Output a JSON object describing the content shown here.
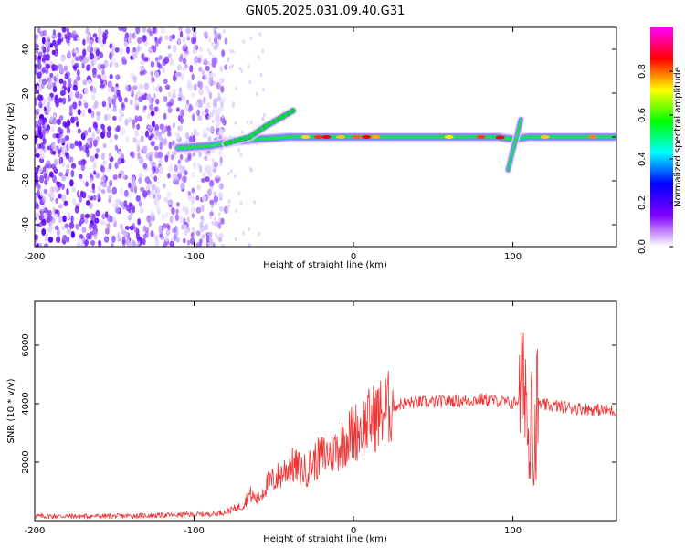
{
  "title": "GN05.2025.031.09.40.G31",
  "chart_data": [
    {
      "type": "heatmap",
      "xlabel": "Height of straight line (km)",
      "ylabel": "Frequency (Hz)",
      "xlim": [
        -200,
        165
      ],
      "ylim": [
        -50,
        50
      ],
      "xticks": [
        -200,
        -100,
        0,
        100
      ],
      "yticks": [
        -40,
        -20,
        0,
        20,
        40
      ],
      "colorbar": {
        "label": "Normalized spectral amplitude",
        "range": [
          0,
          1
        ],
        "ticks": [
          "0.0",
          "0.2",
          "0.4",
          "0.6",
          "0.8"
        ],
        "colors": [
          "#ffffff",
          "#8000ff",
          "#0000ff",
          "#00ffff",
          "#00ff00",
          "#ffff00",
          "#ff0000",
          "#ff00ff"
        ]
      },
      "main_trace": {
        "description_free": true,
        "points": [
          [
            -110,
            -5
          ],
          [
            -90,
            -4
          ],
          [
            -75,
            -2
          ],
          [
            -60,
            -1
          ],
          [
            -40,
            0
          ],
          [
            -20,
            0
          ],
          [
            0,
            0
          ],
          [
            30,
            0
          ],
          [
            60,
            0
          ],
          [
            90,
            0
          ],
          [
            100,
            -1
          ],
          [
            110,
            0
          ],
          [
            165,
            0
          ]
        ]
      },
      "branch_trace": {
        "points": [
          [
            -80,
            -3
          ],
          [
            -65,
            0
          ],
          [
            -55,
            5
          ],
          [
            -45,
            9
          ],
          [
            -38,
            12
          ]
        ]
      },
      "spike_trace": {
        "points": [
          [
            97,
            -15
          ],
          [
            100,
            -6
          ],
          [
            103,
            2
          ],
          [
            105,
            8
          ]
        ]
      }
    },
    {
      "type": "line",
      "xlabel": "Height of straight line (km)",
      "ylabel": "SNR (10 * v/v)",
      "xlim": [
        -200,
        165
      ],
      "ylim": [
        0,
        7500
      ],
      "xticks": [
        -200,
        -100,
        0,
        100
      ],
      "yticks": [
        2000,
        4000,
        6000
      ],
      "color": "#ee3333",
      "envelope": {
        "x": [
          -200,
          -150,
          -120,
          -90,
          -80,
          -70,
          -65,
          -60,
          -55,
          -50,
          -45,
          -40,
          -35,
          -30,
          -25,
          -20,
          -15,
          -10,
          -5,
          0,
          5,
          10,
          15,
          20,
          25,
          30,
          40,
          50,
          60,
          70,
          80,
          90,
          100,
          105,
          108,
          110,
          112,
          113,
          115,
          120,
          130,
          140,
          150,
          165
        ],
        "y": [
          150,
          150,
          180,
          220,
          300,
          500,
          900,
          700,
          1200,
          1400,
          1600,
          1900,
          1800,
          1700,
          2000,
          2200,
          2300,
          2500,
          2800,
          3000,
          3200,
          3400,
          3600,
          3800,
          3900,
          4000,
          4050,
          4050,
          4100,
          4100,
          4150,
          4100,
          4000,
          4200,
          5000,
          2000,
          6000,
          1500,
          4000,
          3950,
          3900,
          3850,
          3800,
          3750
        ]
      }
    }
  ]
}
